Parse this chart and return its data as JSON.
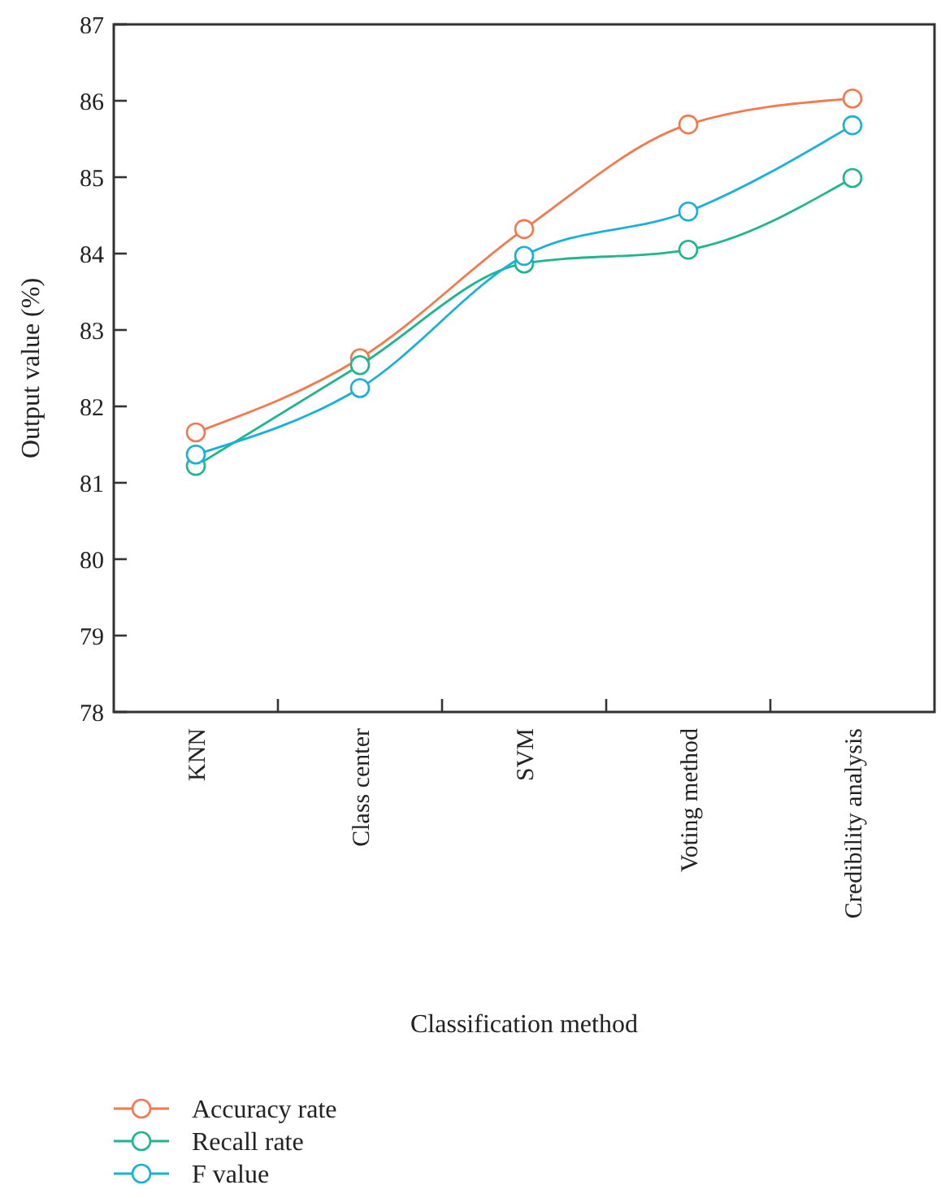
{
  "chart_data": {
    "type": "line",
    "xlabel": "Classification method",
    "ylabel": "Output value (%)",
    "categories": [
      "KNN",
      "Class center",
      "SVM",
      "Voting method",
      "Credibility analysis"
    ],
    "ylim": [
      78,
      87
    ],
    "yticks": [
      78,
      79,
      80,
      81,
      82,
      83,
      84,
      85,
      86,
      87
    ],
    "marker": "circle",
    "legend": "bottom",
    "grid": false,
    "series": [
      {
        "name": "Accuracy rate",
        "color": "#f4794e",
        "values": [
          81.66,
          82.63,
          84.32,
          85.69,
          86.03
        ]
      },
      {
        "name": "Recall rate",
        "color": "#1fb58f",
        "values": [
          81.22,
          82.54,
          83.87,
          84.05,
          84.99
        ]
      },
      {
        "name": "F value",
        "color": "#1ab0d8",
        "values": [
          81.37,
          82.24,
          83.97,
          84.55,
          85.68
        ]
      }
    ]
  }
}
